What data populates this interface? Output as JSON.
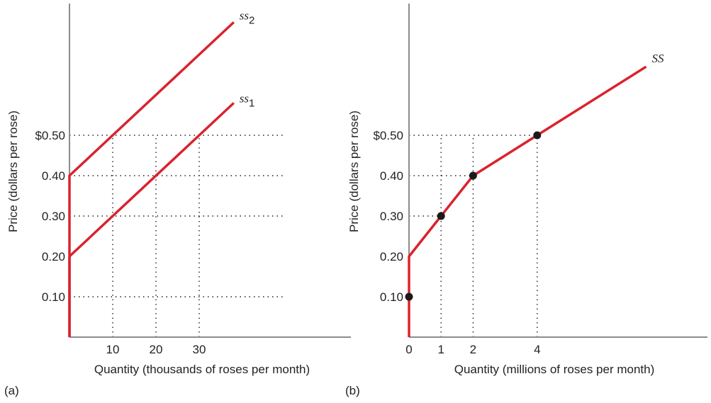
{
  "chart_data": [
    {
      "type": "line",
      "panel_label": "(a)",
      "ylabel": "Price (dollars per rose)",
      "xlabel": "Quantity (thousands of roses per month)",
      "xlim": [
        0,
        50
      ],
      "ylim": [
        0,
        0.82
      ],
      "x_ticks": [
        {
          "value": 10,
          "label": "10"
        },
        {
          "value": 20,
          "label": "20"
        },
        {
          "value": 30,
          "label": "30"
        }
      ],
      "y_ticks": [
        {
          "value": 0.5,
          "label": "$0.50"
        },
        {
          "value": 0.4,
          "label": "0.40"
        },
        {
          "value": 0.3,
          "label": "0.30"
        },
        {
          "value": 0.2,
          "label": "0.20"
        },
        {
          "value": 0.1,
          "label": "0.10"
        }
      ],
      "grid": {
        "horizontal": [
          0.5,
          0.4,
          0.3,
          0.1
        ],
        "horizontal_extent": 50,
        "vertical": [
          {
            "x": 10,
            "y_top": 0.5
          },
          {
            "x": 20,
            "y_top": 0.5
          },
          {
            "x": 30,
            "y_top": 0.5
          }
        ]
      },
      "series": [
        {
          "name": "ss",
          "subscript": "1",
          "color": "#d9232e",
          "points": [
            [
              0,
              0
            ],
            [
              0,
              0.2
            ],
            [
              38,
              0.58
            ]
          ]
        },
        {
          "name": "ss",
          "subscript": "2",
          "color": "#d9232e",
          "points": [
            [
              0,
              0
            ],
            [
              0,
              0.4
            ],
            [
              38,
              0.78
            ]
          ]
        }
      ],
      "markers": []
    },
    {
      "type": "line",
      "panel_label": "(b)",
      "ylabel": "Price (dollars per rose)",
      "xlabel": "Quantity (millions of roses per month)",
      "xlim": [
        0,
        9
      ],
      "ylim": [
        0,
        0.82
      ],
      "x_ticks": [
        {
          "value": 0,
          "label": "0"
        },
        {
          "value": 1,
          "label": "1"
        },
        {
          "value": 2,
          "label": "2"
        },
        {
          "value": 4,
          "label": "4"
        }
      ],
      "y_ticks": [
        {
          "value": 0.5,
          "label": "$0.50"
        },
        {
          "value": 0.4,
          "label": "0.40"
        },
        {
          "value": 0.3,
          "label": "0.30"
        },
        {
          "value": 0.2,
          "label": "0.20"
        },
        {
          "value": 0.1,
          "label": "0.10"
        }
      ],
      "grid": {
        "horizontal_points": [
          [
            4,
            0.5
          ],
          [
            2,
            0.4
          ],
          [
            1,
            0.3
          ]
        ],
        "vertical": [
          {
            "x": 1,
            "y_top": 0.5
          },
          {
            "x": 2,
            "y_top": 0.5
          },
          {
            "x": 4,
            "y_top": 0.5
          }
        ]
      },
      "series": [
        {
          "name": "SS",
          "subscript": "",
          "color": "#d9232e",
          "points": [
            [
              0,
              0
            ],
            [
              0,
              0.2
            ],
            [
              1,
              0.3
            ],
            [
              2,
              0.4
            ],
            [
              4,
              0.5
            ],
            [
              7.4,
              0.67
            ]
          ]
        }
      ],
      "markers": [
        [
          0,
          0.1
        ],
        [
          1,
          0.3
        ],
        [
          2,
          0.4
        ],
        [
          4,
          0.5
        ]
      ]
    }
  ]
}
